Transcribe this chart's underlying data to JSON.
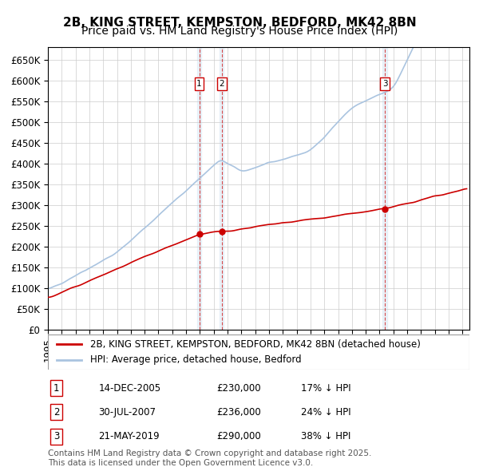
{
  "title": "2B, KING STREET, KEMPSTON, BEDFORD, MK42 8BN",
  "subtitle": "Price paid vs. HM Land Registry's House Price Index (HPI)",
  "ylabel": "",
  "ylim": [
    0,
    680000
  ],
  "yticks": [
    0,
    50000,
    100000,
    150000,
    200000,
    250000,
    300000,
    350000,
    400000,
    450000,
    500000,
    550000,
    600000,
    650000
  ],
  "xlim_start": 1995.0,
  "xlim_end": 2025.5,
  "background_color": "#ffffff",
  "grid_color": "#cccccc",
  "hpi_color": "#aac4e0",
  "price_color": "#cc0000",
  "sale_marker_color": "#cc0000",
  "vline_color": "#cc0000",
  "transactions": [
    {
      "id": 1,
      "date": "14-DEC-2005",
      "year": 2005.95,
      "price": 230000,
      "label": "17% ↓ HPI"
    },
    {
      "id": 2,
      "date": "30-JUL-2007",
      "year": 2007.57,
      "price": 236000,
      "label": "24% ↓ HPI"
    },
    {
      "id": 3,
      "date": "21-MAY-2019",
      "year": 2019.38,
      "price": 290000,
      "label": "38% ↓ HPI"
    }
  ],
  "legend_entries": [
    "2B, KING STREET, KEMPSTON, BEDFORD, MK42 8BN (detached house)",
    "HPI: Average price, detached house, Bedford"
  ],
  "footer_text": "Contains HM Land Registry data © Crown copyright and database right 2025.\nThis data is licensed under the Open Government Licence v3.0.",
  "title_fontsize": 11,
  "subtitle_fontsize": 10,
  "tick_fontsize": 8.5,
  "legend_fontsize": 8.5,
  "table_fontsize": 8.5,
  "footer_fontsize": 7.5
}
